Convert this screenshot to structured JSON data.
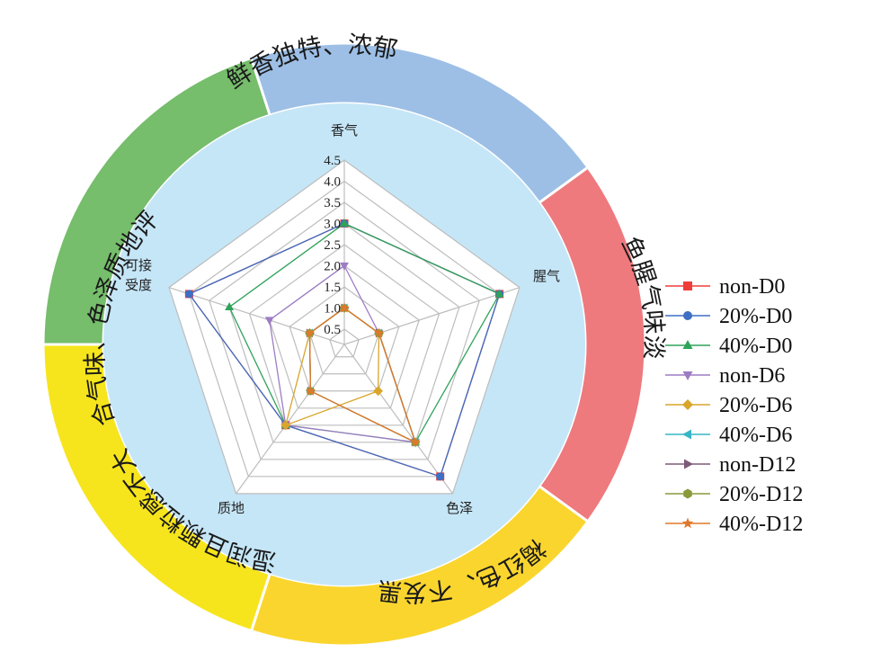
{
  "chart_data": {
    "type": "radar",
    "axes": [
      "香气",
      "腥气",
      "色泽",
      "质地",
      "可接\n受度"
    ],
    "ticks": [
      "0.5",
      "1.0",
      "1.5",
      "2.0",
      "2.5",
      "3.0",
      "3.5",
      "4.0",
      "4.5"
    ],
    "rmin": 0.5,
    "rmax": 4.5,
    "tick_step": 0.5,
    "ring_labels": [
      "鲜香独特、浓郁",
      "鱼腥气味淡",
      "褐红色、不发黑",
      "湿润且颗粒感不大",
      "综合气味、色泽质地评价"
    ],
    "ring_colors": [
      "#9dbfe6",
      "#ee7a7e",
      "#fad52e",
      "#f6e51c",
      "#76bd6c"
    ],
    "inner_fill": "#c5e6f7",
    "series": [
      {
        "name": "non-D0",
        "color": "#ef3e3a",
        "marker": "square",
        "values": [
          3.0,
          4.0,
          4.0,
          2.5,
          4.0
        ]
      },
      {
        "name": "20%-D0",
        "color": "#3d6fc4",
        "marker": "circle",
        "values": [
          3.0,
          4.0,
          4.0,
          2.5,
          4.0
        ]
      },
      {
        "name": "40%-D0",
        "color": "#2fa35a",
        "marker": "triangle-up",
        "values": [
          3.0,
          4.0,
          3.0,
          2.5,
          3.0
        ]
      },
      {
        "name": "non-D6",
        "color": "#9d7cc4",
        "marker": "triangle-down",
        "values": [
          2.0,
          1.0,
          3.0,
          2.5,
          2.0
        ]
      },
      {
        "name": "20%-D6",
        "color": "#d9a52b",
        "marker": "diamond",
        "values": [
          1.0,
          1.0,
          1.5,
          2.5,
          1.0
        ]
      },
      {
        "name": "40%-D6",
        "color": "#36b6c6",
        "marker": "triangle-left",
        "values": [
          1.0,
          1.0,
          3.0,
          1.5,
          1.0
        ]
      },
      {
        "name": "non-D12",
        "color": "#7d5a78",
        "marker": "triangle-right",
        "values": [
          1.0,
          1.0,
          3.0,
          1.5,
          1.0
        ]
      },
      {
        "name": "20%-D12",
        "color": "#8a9a3a",
        "marker": "hexagon",
        "values": [
          1.0,
          1.0,
          3.0,
          1.5,
          1.0
        ]
      },
      {
        "name": "40%-D12",
        "color": "#e0782a",
        "marker": "star",
        "values": [
          1.0,
          1.0,
          3.0,
          1.5,
          1.0
        ]
      }
    ]
  }
}
